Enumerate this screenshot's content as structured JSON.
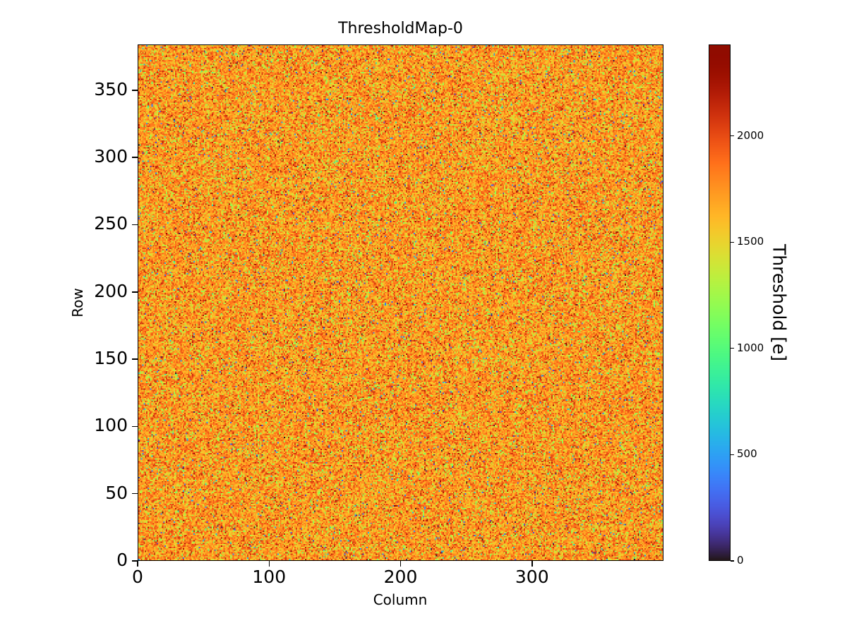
{
  "chart_data": {
    "type": "heatmap",
    "title": "ThresholdMap-0",
    "xlabel": "Column",
    "ylabel": "Row",
    "xlim": [
      0,
      400
    ],
    "ylim": [
      0,
      384
    ],
    "xticks": [
      0,
      100,
      200,
      300
    ],
    "yticks": [
      0,
      50,
      100,
      150,
      200,
      250,
      300,
      350
    ],
    "grid": false,
    "colorbar": {
      "label": "Threshold [e]",
      "ticks": [
        0,
        500,
        1000,
        1500,
        2000
      ],
      "vmin": 0,
      "vmax": 2430,
      "colormap": "turbo"
    },
    "heatmap": {
      "cols": 400,
      "rows": 384,
      "seed": 42,
      "distribution": {
        "main": {
          "mean": 1750,
          "std": 190,
          "weight": 0.93
        },
        "low_band": {
          "mean": 1250,
          "std": 120,
          "weight": 0.055
        },
        "dark_outliers": {
          "min": 0,
          "max": 800,
          "weight": 0.015
        }
      }
    }
  }
}
